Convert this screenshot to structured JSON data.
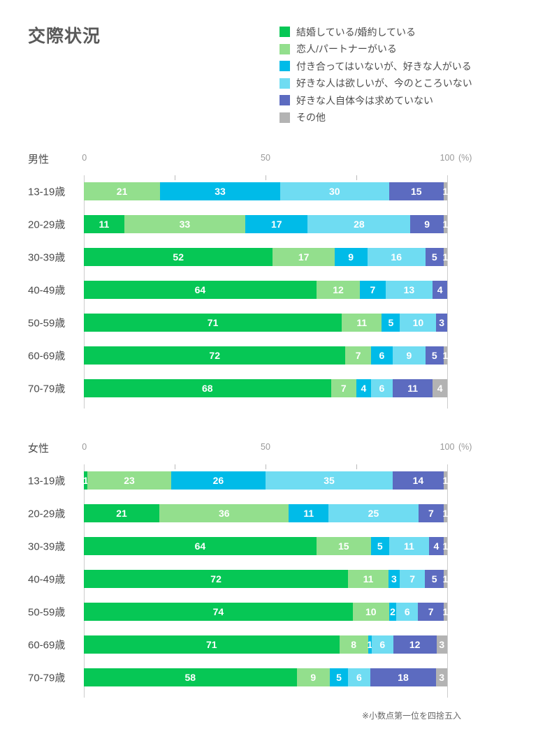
{
  "title": "交際状況",
  "legend": [
    {
      "key": "married",
      "label": "結婚している/婚約している",
      "color": "#06C755"
    },
    {
      "key": "partner",
      "label": "恋人/パートナーがいる",
      "color": "#93DF8D"
    },
    {
      "key": "crush",
      "label": "付き合ってはいないが、好きな人がいる",
      "color": "#00BBE8"
    },
    {
      "key": "wants-crush",
      "label": "好きな人は欲しいが、今のところいない",
      "color": "#6FDCF2"
    },
    {
      "key": "not-seeking",
      "label": "好きな人自体今は求めていない",
      "color": "#5C6BC0"
    },
    {
      "key": "other",
      "label": "その他",
      "color": "#B3B3B3"
    }
  ],
  "axis": {
    "ticks": [
      "0",
      "50",
      "100"
    ],
    "unit": "(%)"
  },
  "footnote": "※小数点第一位を四捨五入",
  "chart_data": [
    {
      "type": "bar",
      "orientation": "horizontal",
      "stacked": true,
      "group": "男性",
      "xlim": [
        0,
        100
      ],
      "categories": [
        "13-19歳",
        "20-29歳",
        "30-39歳",
        "40-49歳",
        "50-59歳",
        "60-69歳",
        "70-79歳"
      ],
      "series": [
        {
          "name": "結婚している/婚約している",
          "values": [
            0,
            11,
            52,
            64,
            71,
            72,
            68
          ]
        },
        {
          "name": "恋人/パートナーがいる",
          "values": [
            21,
            33,
            17,
            12,
            11,
            7,
            7
          ]
        },
        {
          "name": "付き合ってはいないが、好きな人がいる",
          "values": [
            33,
            17,
            9,
            7,
            5,
            6,
            4
          ]
        },
        {
          "name": "好きな人は欲しいが、今のところいない",
          "values": [
            30,
            28,
            16,
            13,
            10,
            9,
            6
          ]
        },
        {
          "name": "好きな人自体今は求めていない",
          "values": [
            15,
            9,
            5,
            4,
            3,
            5,
            11
          ]
        },
        {
          "name": "その他",
          "values": [
            1,
            1,
            1,
            0,
            0,
            1,
            4
          ]
        }
      ]
    },
    {
      "type": "bar",
      "orientation": "horizontal",
      "stacked": true,
      "group": "女性",
      "xlim": [
        0,
        100
      ],
      "categories": [
        "13-19歳",
        "20-29歳",
        "30-39歳",
        "40-49歳",
        "50-59歳",
        "60-69歳",
        "70-79歳"
      ],
      "series": [
        {
          "name": "結婚している/婚約している",
          "values": [
            1,
            21,
            64,
            72,
            74,
            71,
            58
          ]
        },
        {
          "name": "恋人/パートナーがいる",
          "values": [
            23,
            36,
            15,
            11,
            10,
            8,
            9
          ]
        },
        {
          "name": "付き合ってはいないが、好きな人がいる",
          "values": [
            26,
            11,
            5,
            3,
            2,
            1,
            5
          ]
        },
        {
          "name": "好きな人は欲しいが、今のところいない",
          "values": [
            35,
            25,
            11,
            7,
            6,
            6,
            6
          ]
        },
        {
          "name": "好きな人自体今は求めていない",
          "values": [
            14,
            7,
            4,
            5,
            7,
            12,
            18
          ]
        },
        {
          "name": "その他",
          "values": [
            1,
            1,
            1,
            1,
            1,
            3,
            3
          ]
        }
      ]
    }
  ]
}
